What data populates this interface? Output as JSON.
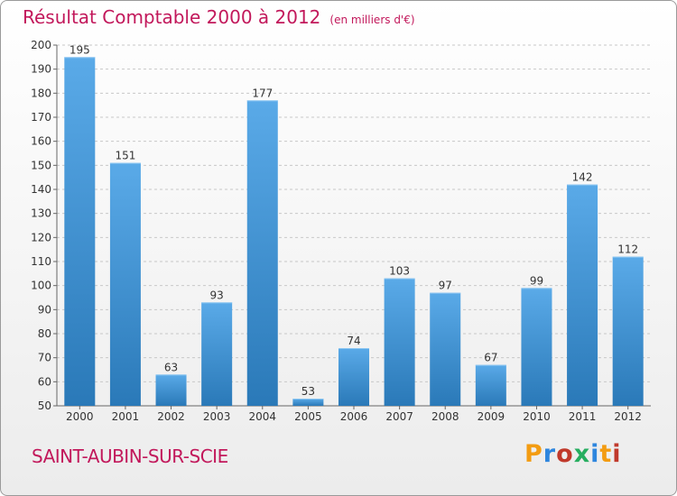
{
  "title": "Résultat Comptable 2000 à 2012",
  "subtitle": "(en milliers d'€)",
  "commune": "SAINT-AUBIN-SUR-SCIE",
  "logo_text": "Proxiti",
  "colors": {
    "title": "#c2185b",
    "bar_top": "#5aaae8",
    "bar_bottom": "#2a79b8",
    "grid": "#c8c8c8",
    "axis_text": "#333333"
  },
  "chart_data": {
    "type": "bar",
    "title": "Résultat Comptable 2000 à 2012",
    "ylabel": "en milliers d'€",
    "xlabel": "",
    "categories": [
      "2000",
      "2001",
      "2002",
      "2003",
      "2004",
      "2005",
      "2006",
      "2007",
      "2008",
      "2009",
      "2010",
      "2011",
      "2012"
    ],
    "values": [
      195,
      151,
      63,
      93,
      177,
      53,
      74,
      103,
      97,
      67,
      99,
      142,
      112
    ],
    "ylim": [
      50,
      200
    ],
    "yticks": [
      50,
      60,
      70,
      80,
      90,
      100,
      110,
      120,
      130,
      140,
      150,
      160,
      170,
      180,
      190,
      200
    ],
    "grid": true,
    "data_labels": true
  }
}
